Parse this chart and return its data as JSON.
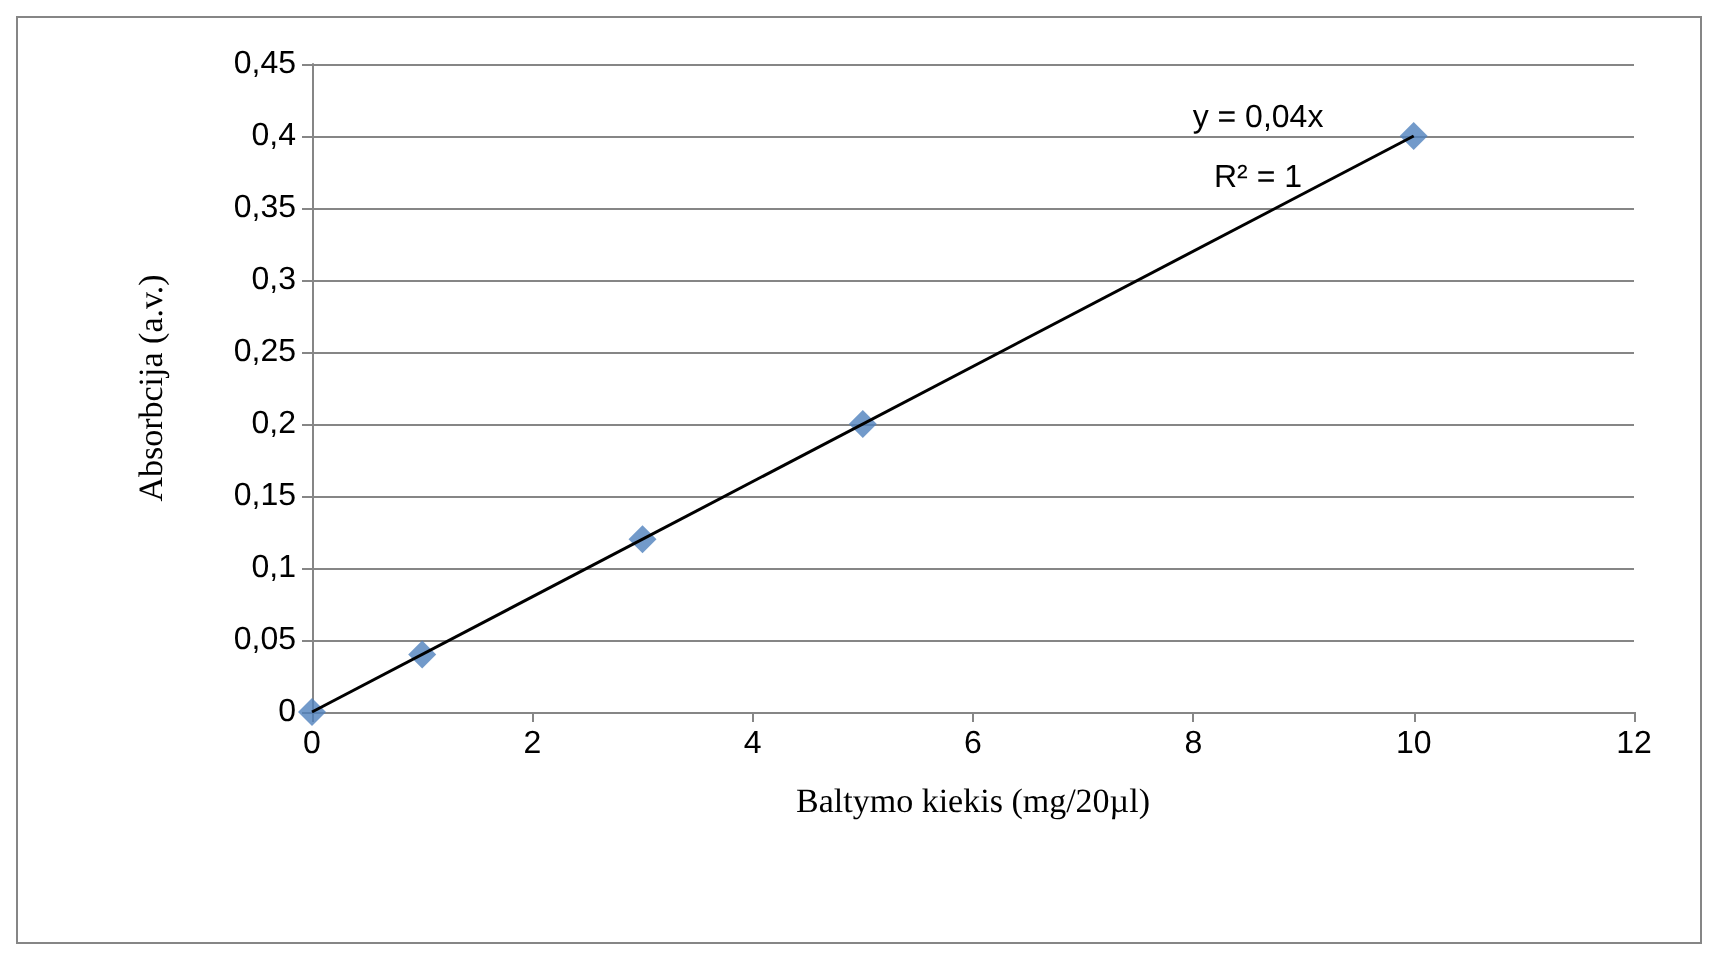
{
  "chart_data": {
    "type": "scatter",
    "xlabel": "Baltymo kiekis (mg/20µl)",
    "ylabel": "Absorbcija (a.v.)",
    "series": [
      {
        "color": "#4f81bd",
        "marker": "diamond",
        "x": [
          0,
          1,
          3,
          5,
          10
        ],
        "values": [
          0,
          0.04,
          0.12,
          0.2,
          0.4
        ]
      },
      {
        "type": "line",
        "color": "#000000",
        "marker": "none",
        "line_style": "solid",
        "x": [
          0,
          10
        ],
        "values": [
          0,
          0.4
        ]
      }
    ],
    "xlim": [
      0,
      12
    ],
    "xticks": [
      0,
      2,
      4,
      6,
      8,
      10,
      12
    ],
    "ylim": [
      0,
      0.45
    ],
    "yticks": [
      {
        "value": 0,
        "label": "0"
      },
      {
        "value": 0.05,
        "label": "0,05"
      },
      {
        "value": 0.1,
        "label": "0,1"
      },
      {
        "value": 0.15,
        "label": "0,15"
      },
      {
        "value": 0.2,
        "label": "0,2"
      },
      {
        "value": 0.25,
        "label": "0,25"
      },
      {
        "value": 0.3,
        "label": "0,3"
      },
      {
        "value": 0.35,
        "label": "0,35"
      },
      {
        "value": 0.4,
        "label": "0,4"
      },
      {
        "value": 0.45,
        "label": "0,45"
      }
    ],
    "grid": "y",
    "annotations": [
      "y = 0,04x",
      "R² = 1"
    ]
  }
}
